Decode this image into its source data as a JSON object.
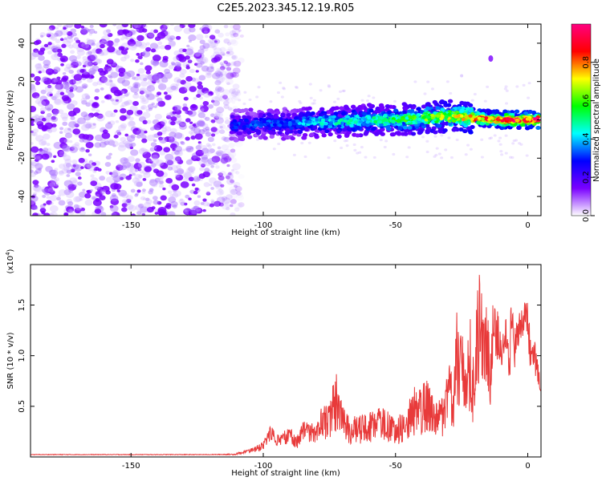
{
  "title": "C2E5.2023.345.12.19.R05",
  "chart_data": [
    {
      "type": "heatmap",
      "xlabel": "Height of straight line (km)",
      "ylabel": "Frequency (Hz)",
      "xlim": [
        -188,
        5
      ],
      "ylim": [
        -50,
        50
      ],
      "x_ticks": [
        -150,
        -100,
        -50,
        0
      ],
      "y_ticks": [
        -40,
        -20,
        0,
        20,
        40
      ],
      "colorbar": {
        "label": "Normalized spectral amplitude",
        "range": [
          0.0,
          1.0
        ],
        "ticks": [
          "0.0",
          "0.2",
          "0.4",
          "0.6",
          "0.8"
        ],
        "tick_values": [
          0.0,
          0.2,
          0.4,
          0.6,
          0.8
        ],
        "colors": [
          "#ffffff",
          "#7a00ff",
          "#0000ff",
          "#00ffff",
          "#00ff00",
          "#ffff00",
          "#ff0000",
          "#ff0080"
        ]
      },
      "ridge": {
        "x": [
          -112,
          -100,
          -90,
          -80,
          -70,
          -60,
          -50,
          -40,
          -30,
          -20,
          -10,
          0,
          4
        ],
        "frequency": [
          -3,
          -2,
          -2,
          -1,
          -1,
          0,
          0,
          1,
          2,
          1,
          0,
          0,
          0
        ],
        "amplitude": [
          0.3,
          0.35,
          0.35,
          0.45,
          0.45,
          0.5,
          0.55,
          0.6,
          0.7,
          0.8,
          0.9,
          0.95,
          0.95
        ]
      },
      "noise_region": {
        "x_range": [
          -188,
          -108
        ],
        "frequency_range": [
          -50,
          50
        ],
        "amplitude": 0.1
      }
    },
    {
      "type": "line",
      "xlabel": "Height of straight line (km)",
      "ylabel": "SNR (10 * v/v)",
      "multiplier_label": "(x10",
      "multiplier_exp": "4",
      "multiplier_close": ")",
      "xlim": [
        -188,
        5
      ],
      "ylim": [
        0,
        1.9
      ],
      "x_ticks": [
        -150,
        -100,
        -50,
        0
      ],
      "y_ticks": [
        0.5,
        1.0,
        1.5
      ],
      "y_tick_labels": [
        "0.5",
        "1.0",
        "1.5"
      ],
      "color": "#e83a3a",
      "series": [
        {
          "x": [
            -188,
            -150,
            -120,
            -110,
            -105,
            -100,
            -97,
            -95,
            -90,
            -87,
            -85,
            -80,
            -78,
            -76,
            -72,
            -70,
            -68,
            -65,
            -60,
            -55,
            -50,
            -45,
            -42,
            -40,
            -38,
            -35,
            -32,
            -30,
            -28,
            -27,
            -25,
            -23,
            -22,
            -20,
            -19,
            -18,
            -17,
            -16,
            -15,
            -14,
            -13,
            -12,
            -11,
            -10,
            -9,
            -8,
            -7,
            -6,
            -5,
            -4,
            -3,
            -2,
            -1,
            0,
            1,
            2,
            3,
            4,
            5
          ],
          "upper": [
            0.03,
            0.03,
            0.03,
            0.04,
            0.08,
            0.15,
            0.32,
            0.25,
            0.3,
            0.22,
            0.35,
            0.33,
            0.55,
            0.5,
            0.88,
            0.5,
            0.42,
            0.4,
            0.45,
            0.5,
            0.38,
            0.55,
            0.75,
            0.7,
            0.8,
            0.55,
            0.6,
            1.05,
            0.9,
            1.45,
            1.2,
            1.35,
            1.55,
            1.0,
            1.9,
            1.8,
            1.5,
            1.7,
            1.45,
            1.3,
            1.65,
            1.5,
            1.4,
            1.35,
            1.2,
            1.45,
            1.0,
            1.8,
            1.3,
            1.4,
            1.45,
            1.7,
            1.55,
            1.75,
            1.2,
            1.3,
            1.1,
            0.9,
            0.7
          ],
          "lower": [
            0.02,
            0.02,
            0.02,
            0.02,
            0.03,
            0.05,
            0.1,
            0.08,
            0.1,
            0.05,
            0.1,
            0.08,
            0.12,
            0.1,
            0.15,
            0.1,
            0.08,
            0.07,
            0.08,
            0.1,
            0.05,
            0.1,
            0.12,
            0.12,
            0.15,
            0.08,
            0.1,
            0.25,
            0.15,
            0.35,
            0.2,
            0.3,
            0.1,
            0.2,
            0.45,
            0.5,
            0.3,
            0.6,
            0.4,
            0.3,
            0.7,
            0.8,
            0.9,
            0.7,
            1.0,
            1.0,
            0.6,
            1.0,
            0.8,
            0.9,
            1.0,
            1.1,
            0.95,
            1.05,
            0.75,
            0.85,
            0.7,
            0.65,
            0.6
          ]
        }
      ]
    }
  ]
}
